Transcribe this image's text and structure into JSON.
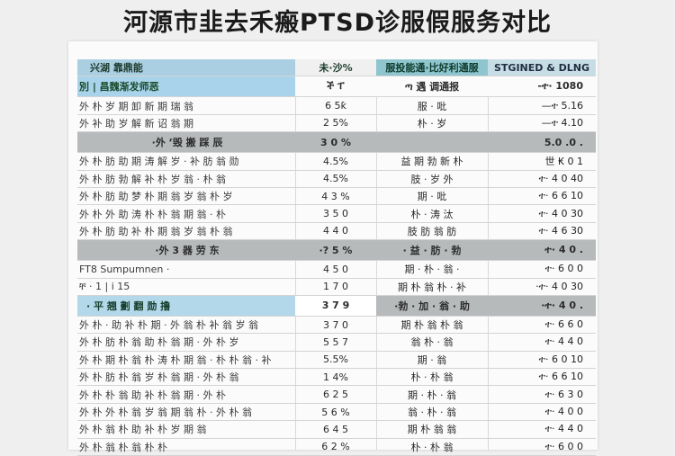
{
  "page": {
    "title": "河源市韭去禾瘢PTSD诊服假服务对比"
  },
  "table": {
    "header": [
      "兴湖 靠鼎能",
      "未·沙%",
      "服投能通·比好利通服",
      "STGINED & DLNG"
    ],
    "rows": [
      {
        "kind": "section",
        "style": "sec-first",
        "cells": [
          "別 | 昌魏渐发师恶",
          "ች ፐ",
          "ጣ 遇 调通报",
          "-ተ· 1080"
        ]
      },
      {
        "kind": "data",
        "cells": [
          "外 朴 岁 期 卸 新 期 瑞 翁",
          "6 5ƙ",
          "服 · 吡",
          "—ተ  5.16"
        ]
      },
      {
        "kind": "data",
        "cells": [
          "外 补 助 岁 解 新 诏 翁 期",
          "2 5%",
          "朴 · 岁",
          "—ተ  4.10"
        ]
      },
      {
        "kind": "section",
        "style": "sec-gray",
        "cells": [
          "·外 ʼ毁 搬 踩 辰",
          "3 0 %",
          "",
          "5.0 .0 ."
        ]
      },
      {
        "kind": "data",
        "cells": [
          "外 朴 肪 助 期 涛 解 岁 · 补 肪 翁 勋",
          "4.5%",
          "益 期 勃 新 朴",
          "世 ₭ 0 1"
        ]
      },
      {
        "kind": "data",
        "cells": [
          "外 朴 肪 勃 解 补 朴 岁 翁 · 朴 翁",
          "4.5%",
          "肢 · 岁 外",
          "ተ· 4 0 40"
        ]
      },
      {
        "kind": "data",
        "cells": [
          "外 朴 肪 助 梦 朴 期 翁 岁 翁 朴 岁",
          "4 3 %",
          "期 · 吡",
          "ተ· 6 6 10"
        ]
      },
      {
        "kind": "data",
        "cells": [
          "外 朴 外 助 涛 朴 朴 翁 期 翁 · 朴",
          "3 5 0",
          "朴 · 涛 汰",
          "ተ· 4 0 30"
        ]
      },
      {
        "kind": "data",
        "cells": [
          "外 朴 肪 助 补 朴 期 翁 岁 翁 朴 翁",
          "4 4 0",
          "肢 肪 翁 肪",
          "ተ· 4 6 30"
        ]
      },
      {
        "kind": "section",
        "style": "sec-gray",
        "cells": [
          "·外 3 器 劳 东",
          "·? 5 %",
          "· 益 · 肪 · 勃",
          "ተ· 4 0 ."
        ]
      },
      {
        "kind": "data",
        "cells": [
          "FT8   Sumpumnen ·",
          "4 5 0",
          "期 · 朴 · 翁 ·",
          "ተ· 6 0 0"
        ]
      },
      {
        "kind": "data",
        "cells": [
          "ቸ ·   1 | i 15",
          "1 7 0",
          "期 朴 翁 朴 · 补",
          "·ተ· 4 0 30"
        ]
      },
      {
        "kind": "section",
        "style": "sec-mixed",
        "cells": [
          "·  平 翘 劃 翻 勋 撸",
          "3 7 9",
          "·勃 · 加 · 翁 · 助",
          "·ተ· 4 0 ."
        ]
      },
      {
        "kind": "data",
        "cells": [
          "外 朴 · 助 补 朴 期 · 外 翁 朴 补 翁 岁 翁",
          "3 7 0",
          "期 朴 翁 朴 翁",
          "ተ· 6 6 0"
        ]
      },
      {
        "kind": "data",
        "cells": [
          "外 朴 肪 朴 翁 助 朴 翁 期 · 外 朴 岁",
          "5 5 7",
          "翁 朴 · 翁",
          "ተ· 4 4 0"
        ]
      },
      {
        "kind": "data",
        "cells": [
          "外 朴 期 朴 翁 朴 涛 朴 期 翁 · 朴 朴 翁 · 补",
          "5.5%",
          "期 · 翁",
          "ተ· 6 0 10"
        ]
      },
      {
        "kind": "data",
        "cells": [
          "外 朴 肪 朴 翁 岁 朴 翁 期 · 外 朴 翁",
          "1 4%",
          "朴 · 朴 翁",
          "ተ· 6 6 10"
        ]
      },
      {
        "kind": "data",
        "cells": [
          "外 朴 朴 翁 助 补 朴 翁 期 · 外 朴",
          "6 2 5",
          "期 · 朴 · 翁",
          "ተ· 6 3 0"
        ]
      },
      {
        "kind": "data",
        "cells": [
          "外 朴 外 朴 翁 岁 翁 期 翁 朴 · 外 朴 翁",
          "5 6 %",
          "翁 · 朴 · 翁",
          "ተ· 4 0 0"
        ]
      },
      {
        "kind": "data",
        "cells": [
          "外 朴 翁 朴 助 补 朴 岁 期 翁",
          "6 4 5",
          "期 朴 翁 翁",
          "ተ· 4 4 0"
        ]
      },
      {
        "kind": "data",
        "cells": [
          "外 朴 翁 朴 翁 朴 朴",
          "6 2 %",
          "朴 · 朴 翁",
          "ተ· 6 0 0"
        ]
      }
    ]
  }
}
